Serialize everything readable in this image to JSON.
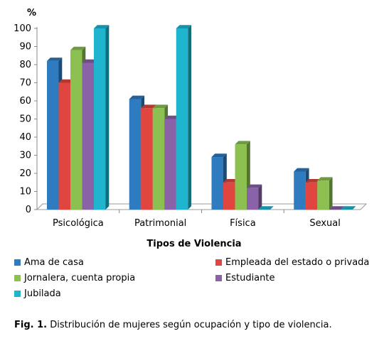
{
  "chart_data": {
    "type": "bar",
    "title": "",
    "ylabel": "%",
    "xlabel": "Tipos de Violencia",
    "ylim": [
      0,
      100
    ],
    "yticks": [
      0,
      10,
      20,
      30,
      40,
      50,
      60,
      70,
      80,
      90,
      100
    ],
    "categories": [
      "Psicológica",
      "Patrimonial",
      "Física",
      "Sexual"
    ],
    "series": [
      {
        "name": "Ama de casa",
        "values": [
          82,
          61,
          29,
          21
        ],
        "color": "#2e7bbf"
      },
      {
        "name": "Empleada del estado o privada",
        "values": [
          70,
          56,
          15,
          15
        ],
        "color": "#e0463f"
      },
      {
        "name": "Jornalera, cuenta propia",
        "values": [
          88,
          56,
          36,
          16
        ],
        "color": "#8cc152"
      },
      {
        "name": "Estudiante",
        "values": [
          81,
          50,
          12,
          0
        ],
        "color": "#8a62a8"
      },
      {
        "name": "Jubilada",
        "values": [
          100,
          100,
          0,
          0
        ],
        "color": "#1fb5cf"
      }
    ],
    "grid": false,
    "legend_position": "bottom"
  },
  "caption": {
    "label": "Fig. 1.",
    "text": " Distribución de mujeres según ocupación y tipo de violencia."
  }
}
